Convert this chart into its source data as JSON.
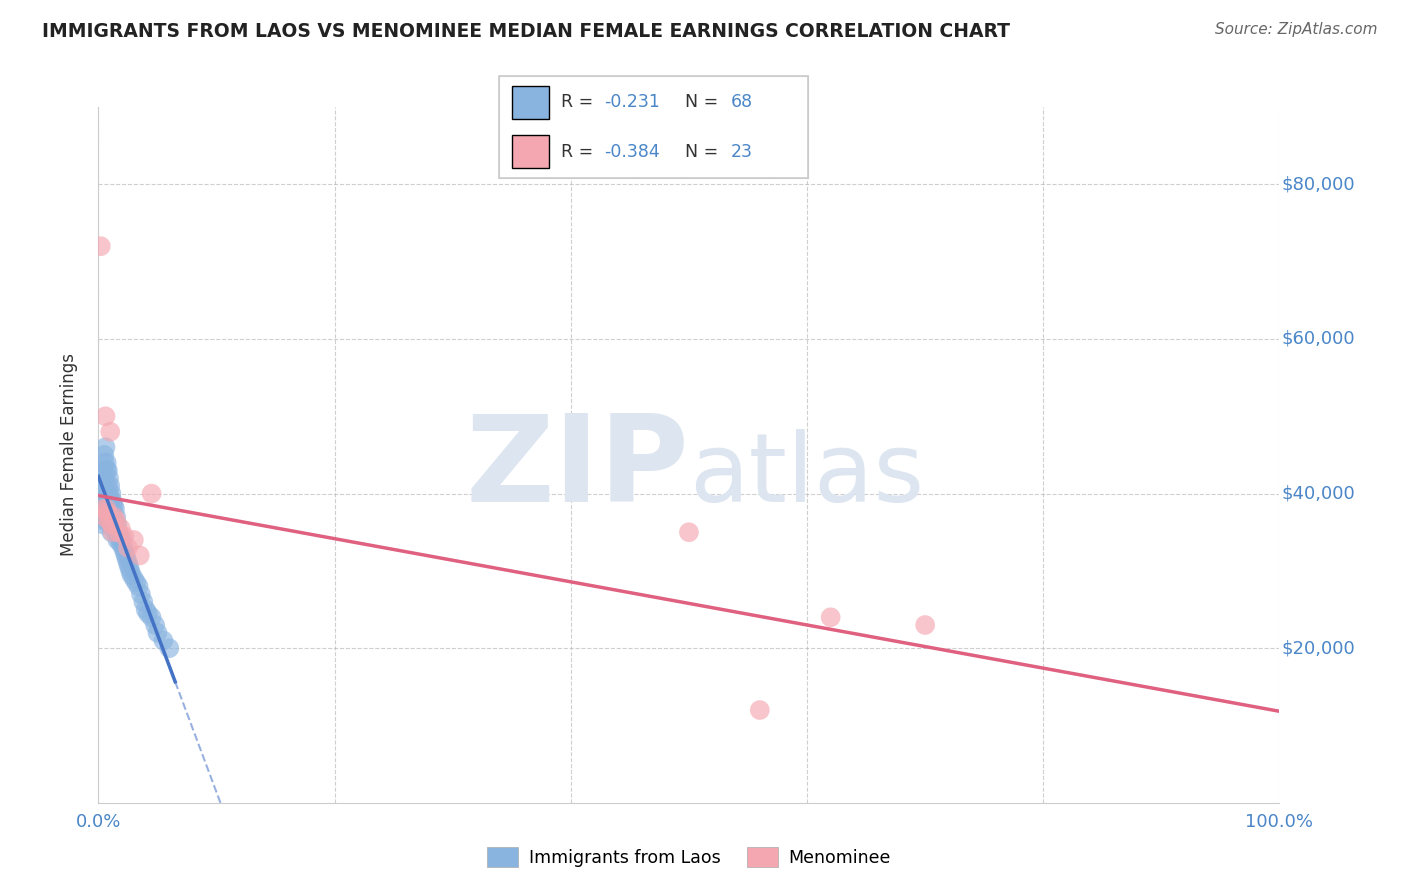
{
  "title": "IMMIGRANTS FROM LAOS VS MENOMINEE MEDIAN FEMALE EARNINGS CORRELATION CHART",
  "source": "Source: ZipAtlas.com",
  "ylabel": "Median Female Earnings",
  "xlim": [
    0,
    1.0
  ],
  "ylim": [
    0,
    90000
  ],
  "yticks": [
    20000,
    40000,
    60000,
    80000
  ],
  "ytick_labels": [
    "$20,000",
    "$40,000",
    "$60,000",
    "$80,000"
  ],
  "R_blue": -0.231,
  "N_blue": 68,
  "R_pink": -0.384,
  "N_pink": 23,
  "blue_color": "#8ab4e0",
  "pink_color": "#f4a7b0",
  "blue_line_color": "#4472c4",
  "pink_line_color": "#e06080",
  "title_color": "#222222",
  "axis_label_color": "#4a86c8",
  "grid_color": "#bbbbbb",
  "watermark_color": "#dce5f0",
  "background_color": "#ffffff",
  "blue_scatter_x": [
    0.001,
    0.002,
    0.002,
    0.003,
    0.003,
    0.003,
    0.004,
    0.004,
    0.004,
    0.005,
    0.005,
    0.005,
    0.005,
    0.006,
    0.006,
    0.006,
    0.006,
    0.007,
    0.007,
    0.007,
    0.007,
    0.008,
    0.008,
    0.008,
    0.009,
    0.009,
    0.009,
    0.01,
    0.01,
    0.01,
    0.01,
    0.011,
    0.011,
    0.011,
    0.012,
    0.012,
    0.013,
    0.013,
    0.014,
    0.014,
    0.015,
    0.015,
    0.016,
    0.016,
    0.017,
    0.018,
    0.019,
    0.02,
    0.021,
    0.022,
    0.023,
    0.024,
    0.025,
    0.026,
    0.027,
    0.028,
    0.03,
    0.032,
    0.034,
    0.036,
    0.038,
    0.04,
    0.042,
    0.045,
    0.048,
    0.05,
    0.055,
    0.06
  ],
  "blue_scatter_y": [
    37000,
    38000,
    40000,
    41000,
    39000,
    42000,
    37500,
    43000,
    36000,
    45000,
    38000,
    44000,
    36500,
    46000,
    39000,
    42000,
    37000,
    43000,
    40000,
    44000,
    38000,
    41000,
    37000,
    43000,
    40000,
    38500,
    42000,
    39000,
    41000,
    37000,
    36000,
    40000,
    38000,
    35000,
    39000,
    37000,
    38500,
    36000,
    38000,
    35500,
    37000,
    35000,
    36000,
    34000,
    35000,
    34000,
    33500,
    34000,
    33000,
    32500,
    32000,
    31500,
    31000,
    30500,
    30000,
    29500,
    29000,
    28500,
    28000,
    27000,
    26000,
    25000,
    24500,
    24000,
    23000,
    22000,
    21000,
    20000
  ],
  "pink_scatter_x": [
    0.002,
    0.004,
    0.005,
    0.006,
    0.007,
    0.008,
    0.009,
    0.01,
    0.011,
    0.012,
    0.013,
    0.015,
    0.017,
    0.019,
    0.022,
    0.025,
    0.03,
    0.035,
    0.045,
    0.5,
    0.62,
    0.7,
    0.56
  ],
  "pink_scatter_y": [
    72000,
    38000,
    37000,
    50000,
    38000,
    37500,
    36500,
    48000,
    36000,
    35000,
    37000,
    36500,
    35000,
    35500,
    34500,
    33000,
    34000,
    32000,
    40000,
    35000,
    24000,
    23000,
    12000
  ],
  "blue_line_x_solid_end": 0.065,
  "pink_line_intercept": 37000,
  "pink_line_slope": -18000
}
